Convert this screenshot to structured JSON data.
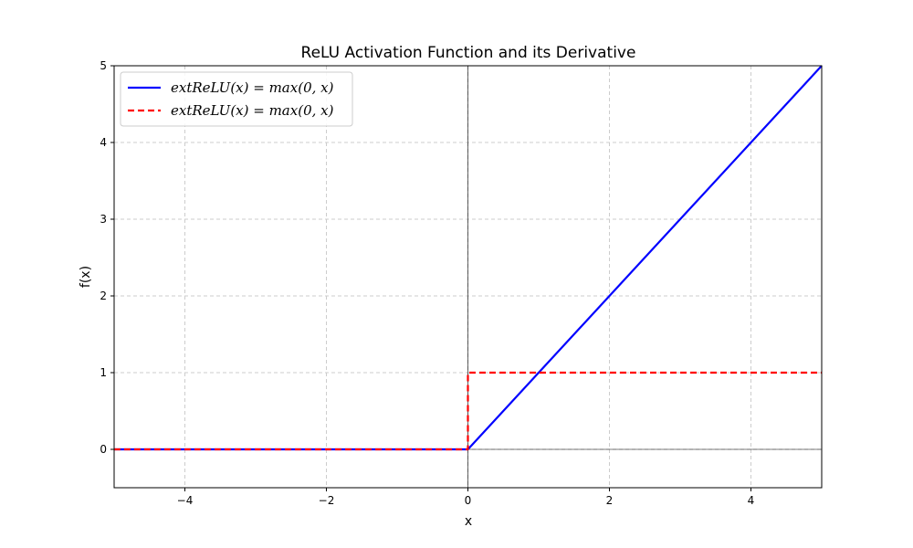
{
  "chart_data": {
    "type": "line",
    "title": "ReLU Activation Function and its Derivative",
    "xlabel": "x",
    "ylabel": "f(x)",
    "xlim": [
      -5,
      5
    ],
    "ylim": [
      -0.5,
      5
    ],
    "xticks": [
      -4,
      -2,
      0,
      2,
      4
    ],
    "xtick_labels": [
      "−4",
      "−2",
      "0",
      "2",
      "4"
    ],
    "yticks": [
      0,
      1,
      2,
      3,
      4,
      5
    ],
    "ytick_labels": [
      "0",
      "1",
      "2",
      "3",
      "4",
      "5"
    ],
    "grid": true,
    "legend_position": "top-left",
    "series": [
      {
        "name": "extReLU(x) = max(0, x)",
        "color": "#0000ff",
        "style": "solid",
        "x": [
          -5,
          0,
          5
        ],
        "y": [
          0,
          0,
          5
        ]
      },
      {
        "name": "extReLU(x) = max(0, x)",
        "color": "#ff0000",
        "style": "dashed",
        "x": [
          -5,
          0,
          0,
          5
        ],
        "y": [
          0,
          0,
          1,
          1
        ]
      }
    ]
  }
}
